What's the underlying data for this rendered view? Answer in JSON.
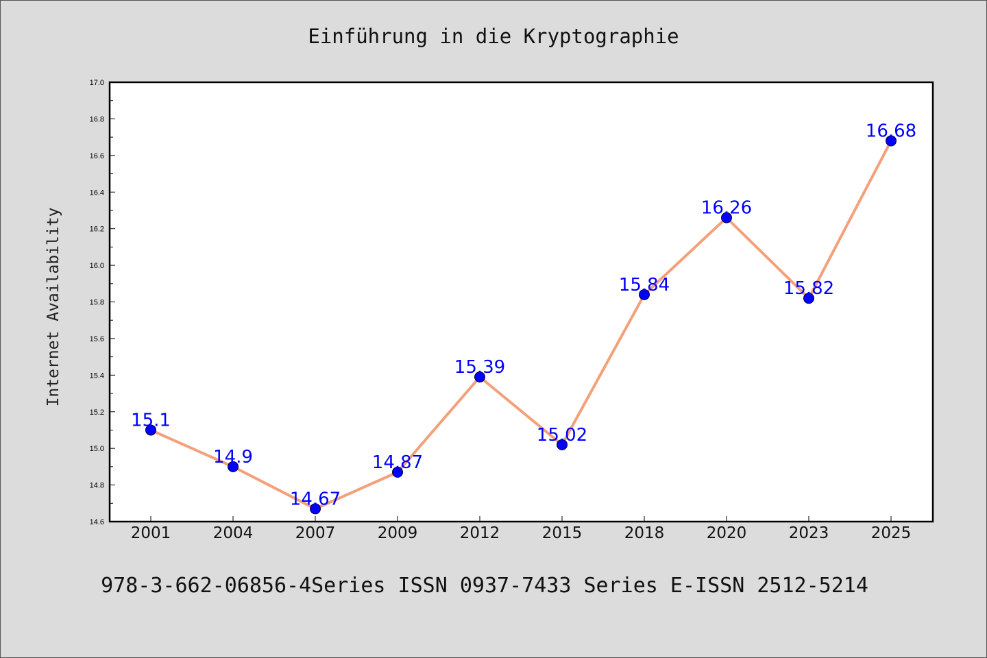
{
  "chart_data": {
    "type": "line",
    "title": "Einführung in die Kryptographie",
    "xlabel": "",
    "ylabel": "Internet Availability",
    "categories": [
      "2001",
      "2004",
      "2007",
      "2009",
      "2012",
      "2015",
      "2018",
      "2020",
      "2023",
      "2025"
    ],
    "series": [
      {
        "values": [
          15.1,
          14.9,
          14.67,
          14.87,
          15.39,
          15.02,
          15.84,
          16.26,
          15.82,
          16.68
        ],
        "data_labels": [
          "15.1",
          "14.9",
          "14.67",
          "14.87",
          "15.39",
          "15.02",
          "15.84",
          "16.26",
          "15.82",
          "16.68"
        ]
      }
    ],
    "ylim": [
      14.6,
      17.0
    ],
    "yticks": [
      "14.6",
      "14.8",
      "15.0",
      "15.2",
      "15.4",
      "15.6",
      "15.8",
      "16.0",
      "16.2",
      "16.4",
      "16.6",
      "16.8",
      "17.0"
    ],
    "grid": false,
    "legend": "none"
  },
  "footer": {
    "text": "978-3-662-06856-4Series ISSN 0937-7433 Series E-ISSN 2512-5214"
  },
  "colors": {
    "background": "#dcdcdc",
    "plot_background": "#ffffff",
    "line": "#f4a07a",
    "marker": "#0000ff",
    "data_label": "#0000ff"
  }
}
